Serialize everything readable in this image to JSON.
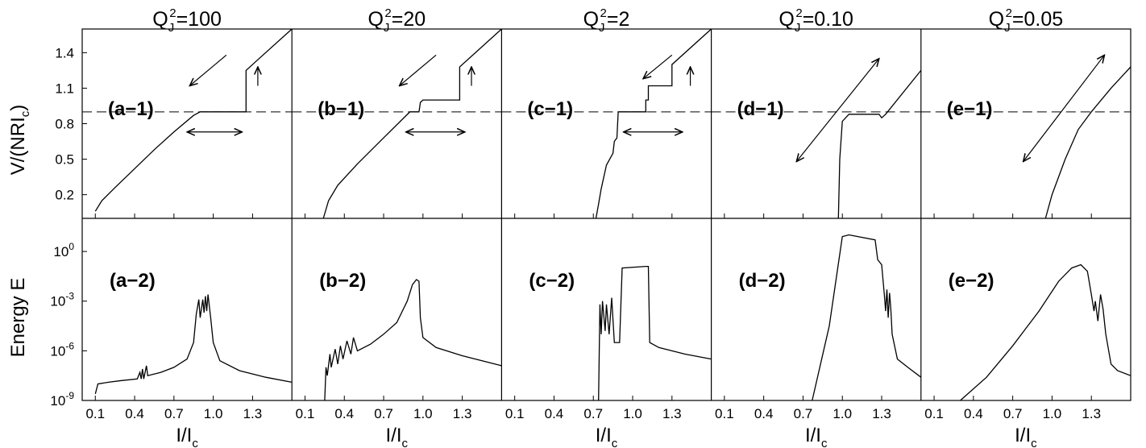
{
  "chart_data": {
    "type": "line",
    "x": {
      "label": "I/I",
      "label_sub": "c",
      "ticks": [
        0.1,
        0.4,
        0.7,
        1.0,
        1.3
      ],
      "tick_labels": [
        "0.1",
        "0.4",
        "0.7",
        "1.0",
        "1.3"
      ],
      "range": [
        0.0,
        1.6
      ]
    },
    "top_row": {
      "ylabel_main": "V/(NRI",
      "ylabel_sub": "c",
      "ylabel_close": ")",
      "ylabel_text": "V/(NRI",
      "ticks": [
        0.2,
        0.5,
        0.8,
        1.1,
        1.4
      ],
      "tick_labels": [
        "0.2",
        "0.5",
        "0.8",
        "1.1",
        "1.4"
      ],
      "range": [
        0.0,
        1.6
      ],
      "dashed_line_y": 0.9
    },
    "bottom_row": {
      "ylabel": "Energy  E",
      "scale": "log",
      "range_log10": [
        -9,
        2
      ],
      "tick_base": "10",
      "tick_exponents": [
        "-9",
        "-6",
        "-3",
        "0"
      ]
    },
    "columns": [
      {
        "title_pre": "Q",
        "title_sub": "J",
        "title_sup": "2",
        "title_post": "=100",
        "top_label": "(a−1)",
        "bottom_label": "(a−2)",
        "top_series": [
          [
            0.1,
            0.06
          ],
          [
            0.15,
            0.15
          ],
          [
            0.25,
            0.26
          ],
          [
            0.4,
            0.42
          ],
          [
            0.55,
            0.58
          ],
          [
            0.7,
            0.73
          ],
          [
            0.85,
            0.87
          ],
          [
            0.9,
            0.9
          ],
          [
            1.25,
            0.9
          ],
          [
            1.25,
            1.25
          ],
          [
            1.35,
            1.35
          ],
          [
            1.6,
            1.6
          ]
        ],
        "top_arrows": [
          {
            "from": [
              1.1,
              1.38
            ],
            "to": [
              0.82,
              1.12
            ]
          },
          {
            "from": [
              1.34,
              1.12
            ],
            "to": [
              1.34,
              1.28
            ]
          },
          {
            "from": [
              0.8,
              0.73
            ],
            "to": [
              1.22,
              0.73
            ],
            "double": true
          }
        ],
        "bottom_series": [
          [
            0.1,
            -8.6
          ],
          [
            0.12,
            -8.0
          ],
          [
            0.2,
            -7.9
          ],
          [
            0.3,
            -7.8
          ],
          [
            0.42,
            -7.7
          ],
          [
            0.44,
            -7.3
          ],
          [
            0.45,
            -7.7
          ],
          [
            0.46,
            -7.1
          ],
          [
            0.47,
            -7.7
          ],
          [
            0.49,
            -6.9
          ],
          [
            0.5,
            -7.5
          ],
          [
            0.6,
            -7.3
          ],
          [
            0.7,
            -7.0
          ],
          [
            0.8,
            -6.5
          ],
          [
            0.85,
            -5.5
          ],
          [
            0.87,
            -3.8
          ],
          [
            0.89,
            -2.9
          ],
          [
            0.9,
            -4.0
          ],
          [
            0.92,
            -2.9
          ],
          [
            0.93,
            -3.7
          ],
          [
            0.94,
            -2.7
          ],
          [
            0.95,
            -3.6
          ],
          [
            0.96,
            -2.6
          ],
          [
            0.98,
            -4.0
          ],
          [
            1.0,
            -5.5
          ],
          [
            1.05,
            -6.6
          ],
          [
            1.2,
            -7.2
          ],
          [
            1.4,
            -7.6
          ],
          [
            1.6,
            -7.9
          ]
        ]
      },
      {
        "title_pre": "Q",
        "title_sub": "J",
        "title_sup": "2",
        "title_post": "=20",
        "top_label": "(b−1)",
        "bottom_label": "(b−2)",
        "top_series": [
          [
            0.24,
            0.0
          ],
          [
            0.28,
            0.15
          ],
          [
            0.35,
            0.28
          ],
          [
            0.5,
            0.46
          ],
          [
            0.7,
            0.68
          ],
          [
            0.9,
            0.9
          ],
          [
            0.97,
            0.9
          ],
          [
            0.98,
            0.98
          ],
          [
            1.0,
            1.0
          ],
          [
            1.28,
            1.0
          ],
          [
            1.28,
            1.28
          ],
          [
            1.6,
            1.6
          ]
        ],
        "top_arrows": [
          {
            "from": [
              1.1,
              1.38
            ],
            "to": [
              0.82,
              1.12
            ]
          },
          {
            "from": [
              1.37,
              1.12
            ],
            "to": [
              1.37,
              1.28
            ]
          },
          {
            "from": [
              0.87,
              0.73
            ],
            "to": [
              1.32,
              0.73
            ],
            "double": true
          }
        ],
        "bottom_series": [
          [
            0.25,
            -9.0
          ],
          [
            0.26,
            -7.0
          ],
          [
            0.27,
            -7.5
          ],
          [
            0.29,
            -6.2
          ],
          [
            0.3,
            -7.0
          ],
          [
            0.33,
            -5.9
          ],
          [
            0.35,
            -6.8
          ],
          [
            0.37,
            -5.7
          ],
          [
            0.39,
            -6.5
          ],
          [
            0.42,
            -5.4
          ],
          [
            0.45,
            -6.2
          ],
          [
            0.47,
            -5.2
          ],
          [
            0.5,
            -6.0
          ],
          [
            0.6,
            -5.6
          ],
          [
            0.7,
            -5.0
          ],
          [
            0.8,
            -4.3
          ],
          [
            0.88,
            -3.0
          ],
          [
            0.92,
            -2.0
          ],
          [
            0.95,
            -1.7
          ],
          [
            0.97,
            -1.8
          ],
          [
            0.98,
            -4.0
          ],
          [
            1.0,
            -5.2
          ],
          [
            1.1,
            -5.8
          ],
          [
            1.3,
            -6.3
          ],
          [
            1.6,
            -6.9
          ]
        ]
      },
      {
        "title_pre": "Q",
        "title_sub": "J",
        "title_sup": "2",
        "title_post": "=2",
        "top_label": "(c−1)",
        "bottom_label": "(c−2)",
        "top_series": [
          [
            0.72,
            0.0
          ],
          [
            0.74,
            0.12
          ],
          [
            0.76,
            0.25
          ],
          [
            0.8,
            0.45
          ],
          [
            0.85,
            0.55
          ],
          [
            0.86,
            0.65
          ],
          [
            0.88,
            0.68
          ],
          [
            0.89,
            0.9
          ],
          [
            1.1,
            0.9
          ],
          [
            1.1,
            1.0
          ],
          [
            1.12,
            1.0
          ],
          [
            1.12,
            1.12
          ],
          [
            1.3,
            1.12
          ],
          [
            1.3,
            1.3
          ],
          [
            1.6,
            1.6
          ]
        ],
        "top_arrows": [
          {
            "from": [
              1.3,
              1.38
            ],
            "to": [
              1.08,
              1.18
            ]
          },
          {
            "from": [
              1.44,
              1.12
            ],
            "to": [
              1.44,
              1.28
            ]
          },
          {
            "from": [
              0.93,
              0.73
            ],
            "to": [
              1.38,
              0.73
            ],
            "double": true
          }
        ],
        "bottom_series": [
          [
            0.74,
            -9.0
          ],
          [
            0.75,
            -3.2
          ],
          [
            0.76,
            -5.0
          ],
          [
            0.77,
            -3.0
          ],
          [
            0.79,
            -4.8
          ],
          [
            0.8,
            -3.2
          ],
          [
            0.82,
            -5.0
          ],
          [
            0.84,
            -2.8
          ],
          [
            0.86,
            -5.5
          ],
          [
            0.9,
            -5.5
          ],
          [
            0.92,
            -1.0
          ],
          [
            1.1,
            -0.9
          ],
          [
            1.12,
            -0.9
          ],
          [
            1.13,
            -5.5
          ],
          [
            1.2,
            -5.8
          ],
          [
            1.4,
            -6.2
          ],
          [
            1.6,
            -6.5
          ]
        ]
      },
      {
        "title_pre": "Q",
        "title_sub": "J",
        "title_sup": "2",
        "title_post": "=0.10",
        "top_label": "(d−1)",
        "bottom_label": "(d−2)",
        "top_series": [
          [
            0.97,
            0.0
          ],
          [
            0.98,
            0.5
          ],
          [
            1.0,
            0.82
          ],
          [
            1.05,
            0.88
          ],
          [
            1.28,
            0.88
          ],
          [
            1.3,
            0.85
          ],
          [
            1.33,
            0.88
          ],
          [
            1.6,
            1.25
          ]
        ],
        "top_arrows": [
          {
            "from": [
              1.28,
              1.35
            ],
            "to": [
              0.65,
              0.48
            ],
            "double": true
          }
        ],
        "bottom_series": [
          [
            0.77,
            -9.0
          ],
          [
            0.9,
            -4.5
          ],
          [
            1.0,
            0.9
          ],
          [
            1.05,
            1.0
          ],
          [
            1.25,
            0.7
          ],
          [
            1.27,
            -0.5
          ],
          [
            1.3,
            -0.8
          ],
          [
            1.32,
            -2.6
          ],
          [
            1.33,
            -3.6
          ],
          [
            1.34,
            -2.3
          ],
          [
            1.35,
            -4.0
          ],
          [
            1.36,
            -2.5
          ],
          [
            1.37,
            -3.5
          ],
          [
            1.38,
            -5.0
          ],
          [
            1.42,
            -6.5
          ],
          [
            1.5,
            -7.0
          ],
          [
            1.6,
            -7.6
          ]
        ]
      },
      {
        "title_pre": "Q",
        "title_sub": "J",
        "title_sup": "2",
        "title_post": "=0.05",
        "top_label": "(e−1)",
        "bottom_label": "(e−2)",
        "top_series": [
          [
            0.95,
            0.0
          ],
          [
            1.0,
            0.2
          ],
          [
            1.1,
            0.5
          ],
          [
            1.2,
            0.75
          ],
          [
            1.3,
            0.9
          ],
          [
            1.45,
            1.1
          ],
          [
            1.6,
            1.28
          ]
        ],
        "top_arrows": [
          {
            "from": [
              1.4,
              1.38
            ],
            "to": [
              0.78,
              0.48
            ],
            "double": true
          }
        ],
        "bottom_series": [
          [
            0.3,
            -9.0
          ],
          [
            0.5,
            -7.6
          ],
          [
            0.7,
            -5.7
          ],
          [
            0.9,
            -3.6
          ],
          [
            1.05,
            -1.8
          ],
          [
            1.15,
            -1.0
          ],
          [
            1.22,
            -0.8
          ],
          [
            1.27,
            -1.2
          ],
          [
            1.3,
            -2.6
          ],
          [
            1.32,
            -3.6
          ],
          [
            1.33,
            -3.0
          ],
          [
            1.35,
            -4.2
          ],
          [
            1.37,
            -2.6
          ],
          [
            1.39,
            -3.5
          ],
          [
            1.41,
            -5.0
          ],
          [
            1.45,
            -6.8
          ],
          [
            1.5,
            -7.2
          ],
          [
            1.6,
            -7.5
          ]
        ]
      }
    ]
  }
}
